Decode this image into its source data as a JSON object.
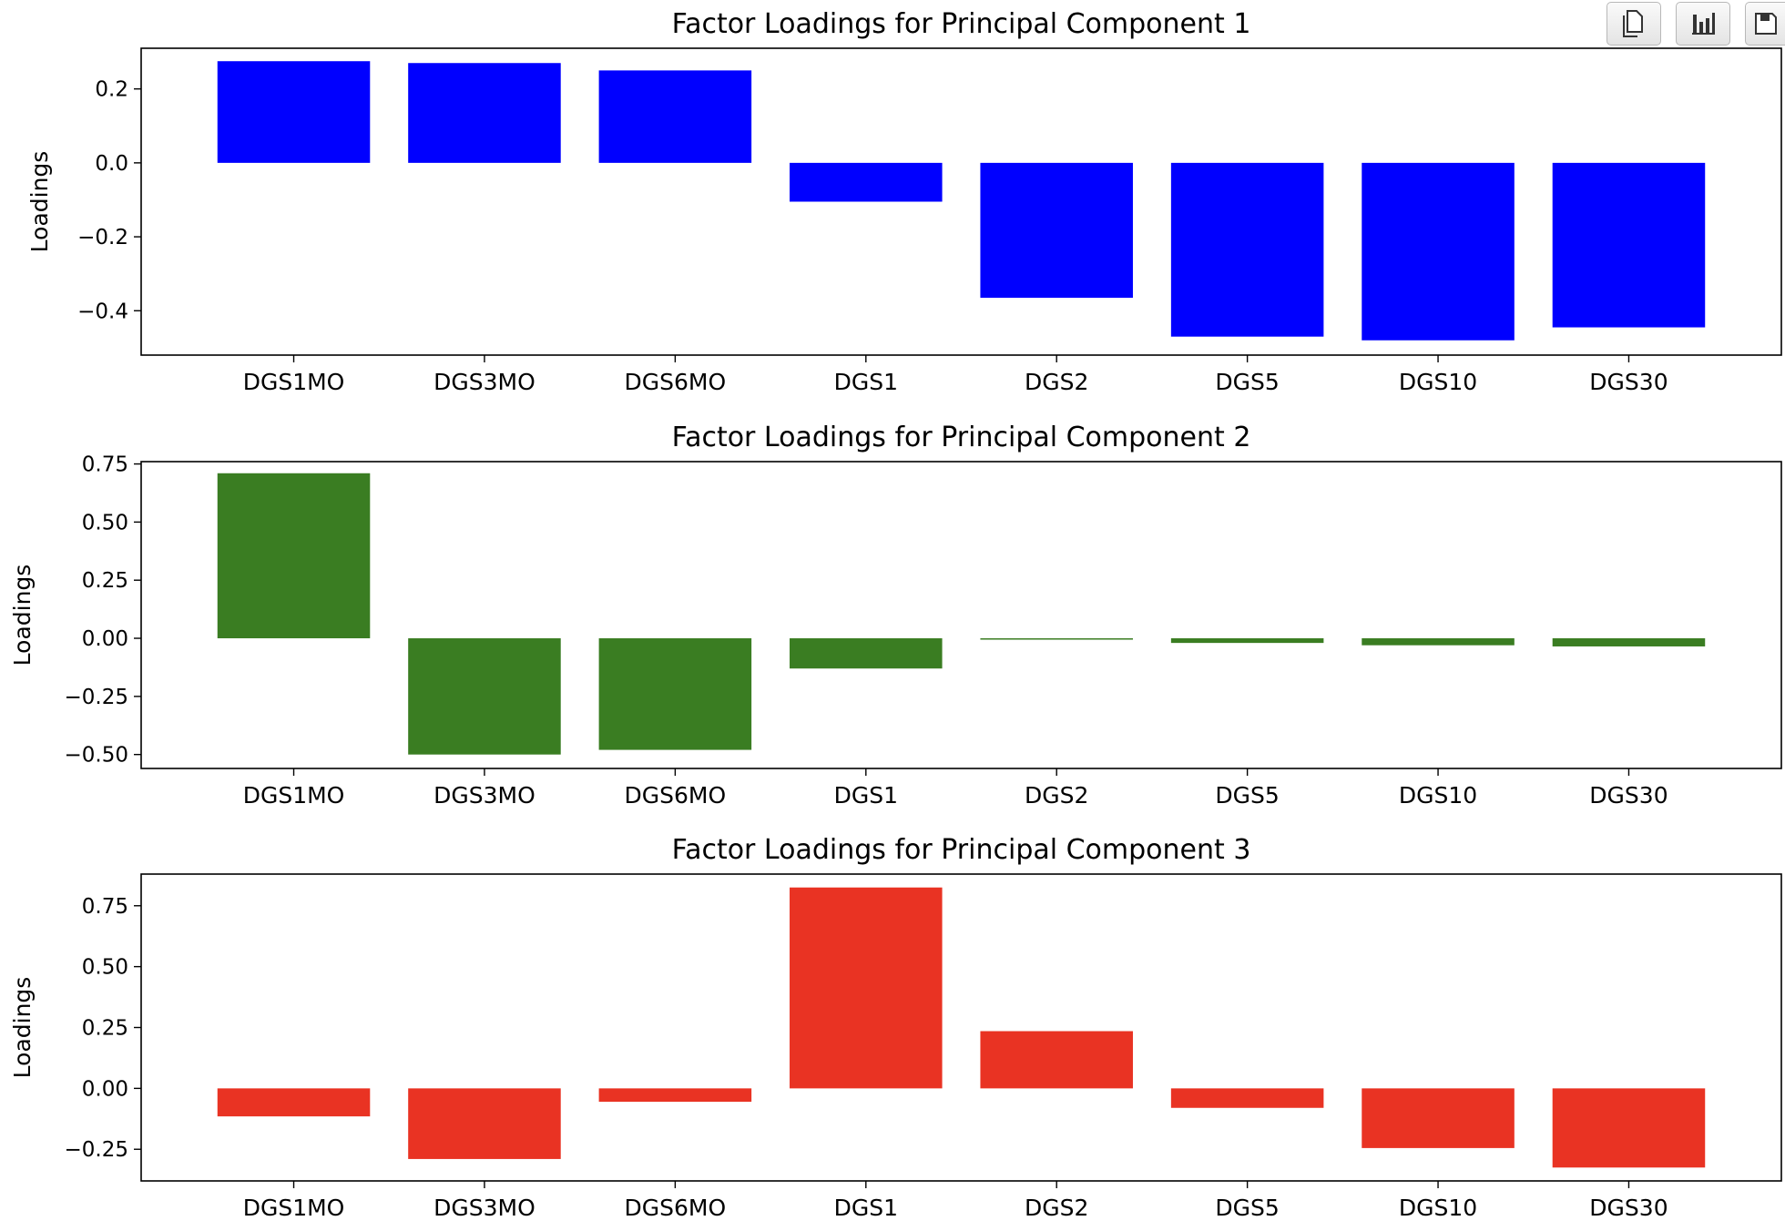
{
  "toolbar": {
    "buttons": [
      {
        "icon": "copy-icon"
      },
      {
        "icon": "bar-chart-icon"
      },
      {
        "icon": "save-icon"
      }
    ]
  },
  "chart_data": [
    {
      "type": "bar",
      "title": "Factor Loadings for Principal Component 1",
      "xlabel": "",
      "ylabel": "Loadings",
      "categories": [
        "DGS1MO",
        "DGS3MO",
        "DGS6MO",
        "DGS1",
        "DGS2",
        "DGS5",
        "DGS10",
        "DGS30"
      ],
      "values": [
        0.275,
        0.27,
        0.25,
        -0.105,
        -0.365,
        -0.47,
        -0.48,
        -0.445
      ],
      "ylim": [
        -0.52,
        0.31
      ],
      "yticks": [
        -0.4,
        -0.2,
        0.0,
        0.2
      ],
      "ytick_labels": [
        "−0.4",
        "−0.2",
        "0.0",
        "0.2"
      ],
      "color": "#0000ff",
      "grid": false
    },
    {
      "type": "bar",
      "title": "Factor Loadings for Principal Component 2",
      "xlabel": "",
      "ylabel": "Loadings",
      "categories": [
        "DGS1MO",
        "DGS3MO",
        "DGS6MO",
        "DGS1",
        "DGS2",
        "DGS5",
        "DGS10",
        "DGS30"
      ],
      "values": [
        0.71,
        -0.5,
        -0.48,
        -0.13,
        -0.005,
        -0.02,
        -0.03,
        -0.035
      ],
      "ylim": [
        -0.56,
        0.76
      ],
      "yticks": [
        -0.5,
        -0.25,
        0.0,
        0.25,
        0.5,
        0.75
      ],
      "ytick_labels": [
        "−0.50",
        "−0.25",
        "0.00",
        "0.25",
        "0.50",
        "0.75"
      ],
      "color": "#3a7d22",
      "grid": false
    },
    {
      "type": "bar",
      "title": "Factor Loadings for Principal Component 3",
      "xlabel": "",
      "ylabel": "Loadings",
      "categories": [
        "DGS1MO",
        "DGS3MO",
        "DGS6MO",
        "DGS1",
        "DGS2",
        "DGS5",
        "DGS10",
        "DGS30"
      ],
      "values": [
        -0.115,
        -0.29,
        -0.055,
        0.825,
        0.235,
        -0.08,
        -0.245,
        -0.325
      ],
      "ylim": [
        -0.38,
        0.88
      ],
      "yticks": [
        -0.25,
        0.0,
        0.25,
        0.5,
        0.75
      ],
      "ytick_labels": [
        "−0.25",
        "0.00",
        "0.25",
        "0.50",
        "0.75"
      ],
      "color": "#e93323",
      "grid": false
    }
  ]
}
